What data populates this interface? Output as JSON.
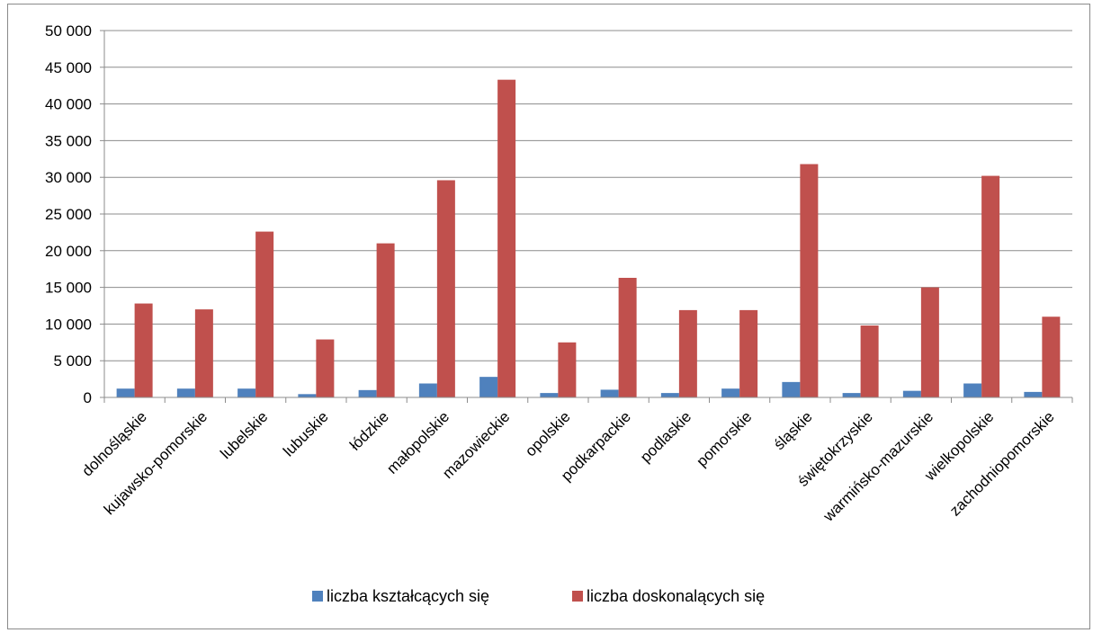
{
  "chart_data": {
    "type": "bar",
    "title": "",
    "xlabel": "",
    "ylabel": "",
    "ylim": [
      0,
      50000
    ],
    "yticks": [
      0,
      5000,
      10000,
      15000,
      20000,
      25000,
      30000,
      35000,
      40000,
      45000,
      50000
    ],
    "ytick_labels": [
      "0",
      "5 000",
      "10 000",
      "15 000",
      "20 000",
      "25 000",
      "30 000",
      "35 000",
      "40 000",
      "45 000",
      "50 000"
    ],
    "grid": true,
    "legend_position": "bottom",
    "categories": [
      "dolnośląskie",
      "kujawsko-pomorskie",
      "lubelskie",
      "lubuskie",
      "łódzkie",
      "małopolskie",
      "mazowieckie",
      "opolskie",
      "podkarpackie",
      "podlaskie",
      "pomorskie",
      "śląskie",
      "świętokrzyskie",
      "warmińsko-mazurskie",
      "wielkopolskie",
      "zachodniopomorskie"
    ],
    "series": [
      {
        "name": "liczba kształcących się",
        "color": "#4f81bd",
        "values": [
          1200,
          1200,
          1200,
          450,
          1000,
          1900,
          2800,
          600,
          1050,
          600,
          1200,
          2100,
          600,
          900,
          1900,
          750
        ]
      },
      {
        "name": "liczba doskonalących się",
        "color": "#c0504d",
        "values": [
          12800,
          12000,
          22600,
          7900,
          21000,
          29600,
          43300,
          7500,
          16300,
          11900,
          11900,
          31800,
          9800,
          15000,
          30200,
          11000
        ]
      }
    ]
  }
}
